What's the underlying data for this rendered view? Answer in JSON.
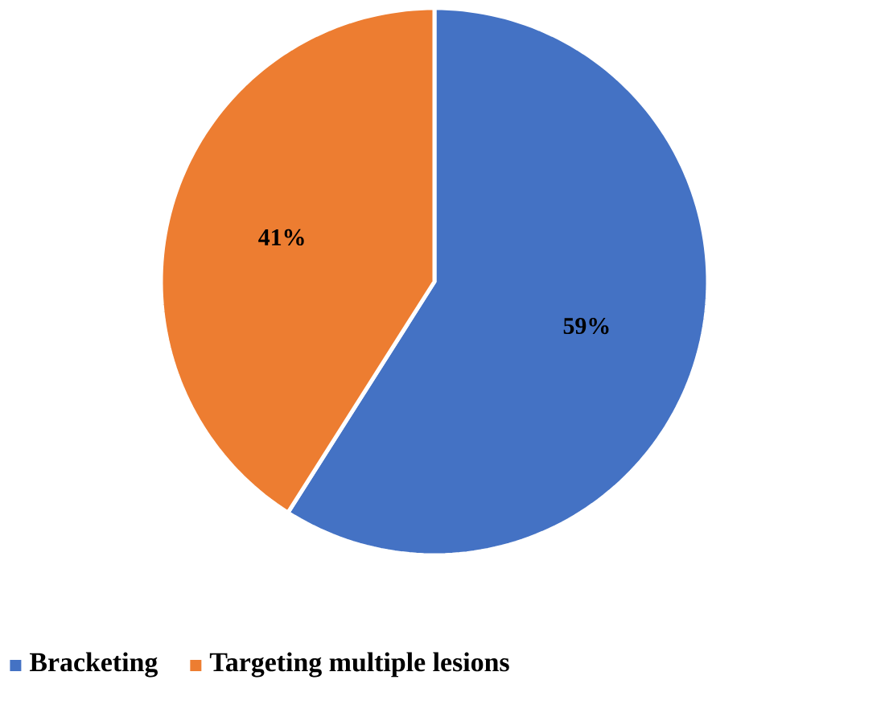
{
  "chart_data": {
    "type": "pie",
    "categories": [
      "Bracketing",
      "Targeting multiple lesions"
    ],
    "values": [
      59,
      41
    ],
    "colors": [
      "#4472c4",
      "#ed7d31"
    ],
    "value_labels": [
      "59%",
      "41%"
    ],
    "legend": "bottom"
  }
}
